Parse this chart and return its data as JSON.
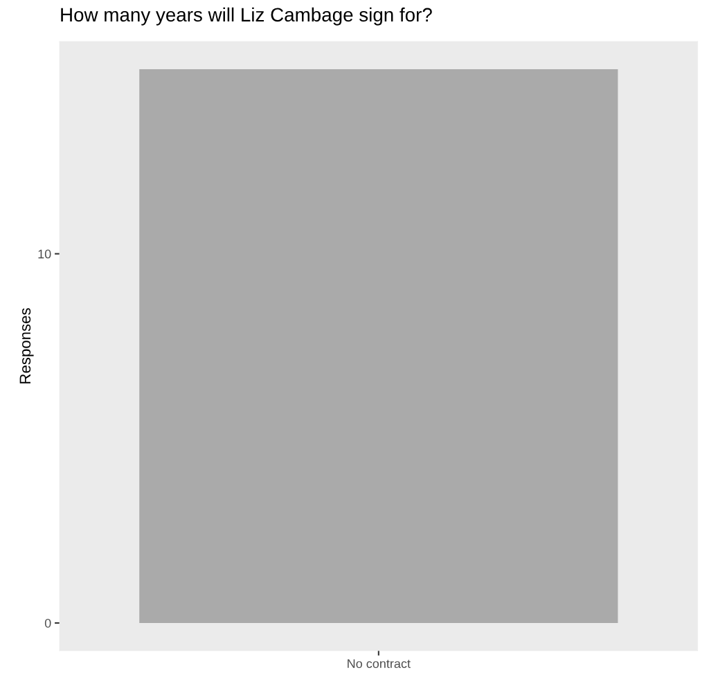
{
  "chart_data": {
    "type": "bar",
    "title": "How many years will Liz Cambage sign for?",
    "ylabel": "Responses",
    "categories": [
      "No contract"
    ],
    "values": [
      15
    ],
    "color": "#aaaaaa",
    "ylim": [
      -0.75,
      15.75
    ],
    "yticks": [
      0,
      10
    ],
    "grid": false
  }
}
